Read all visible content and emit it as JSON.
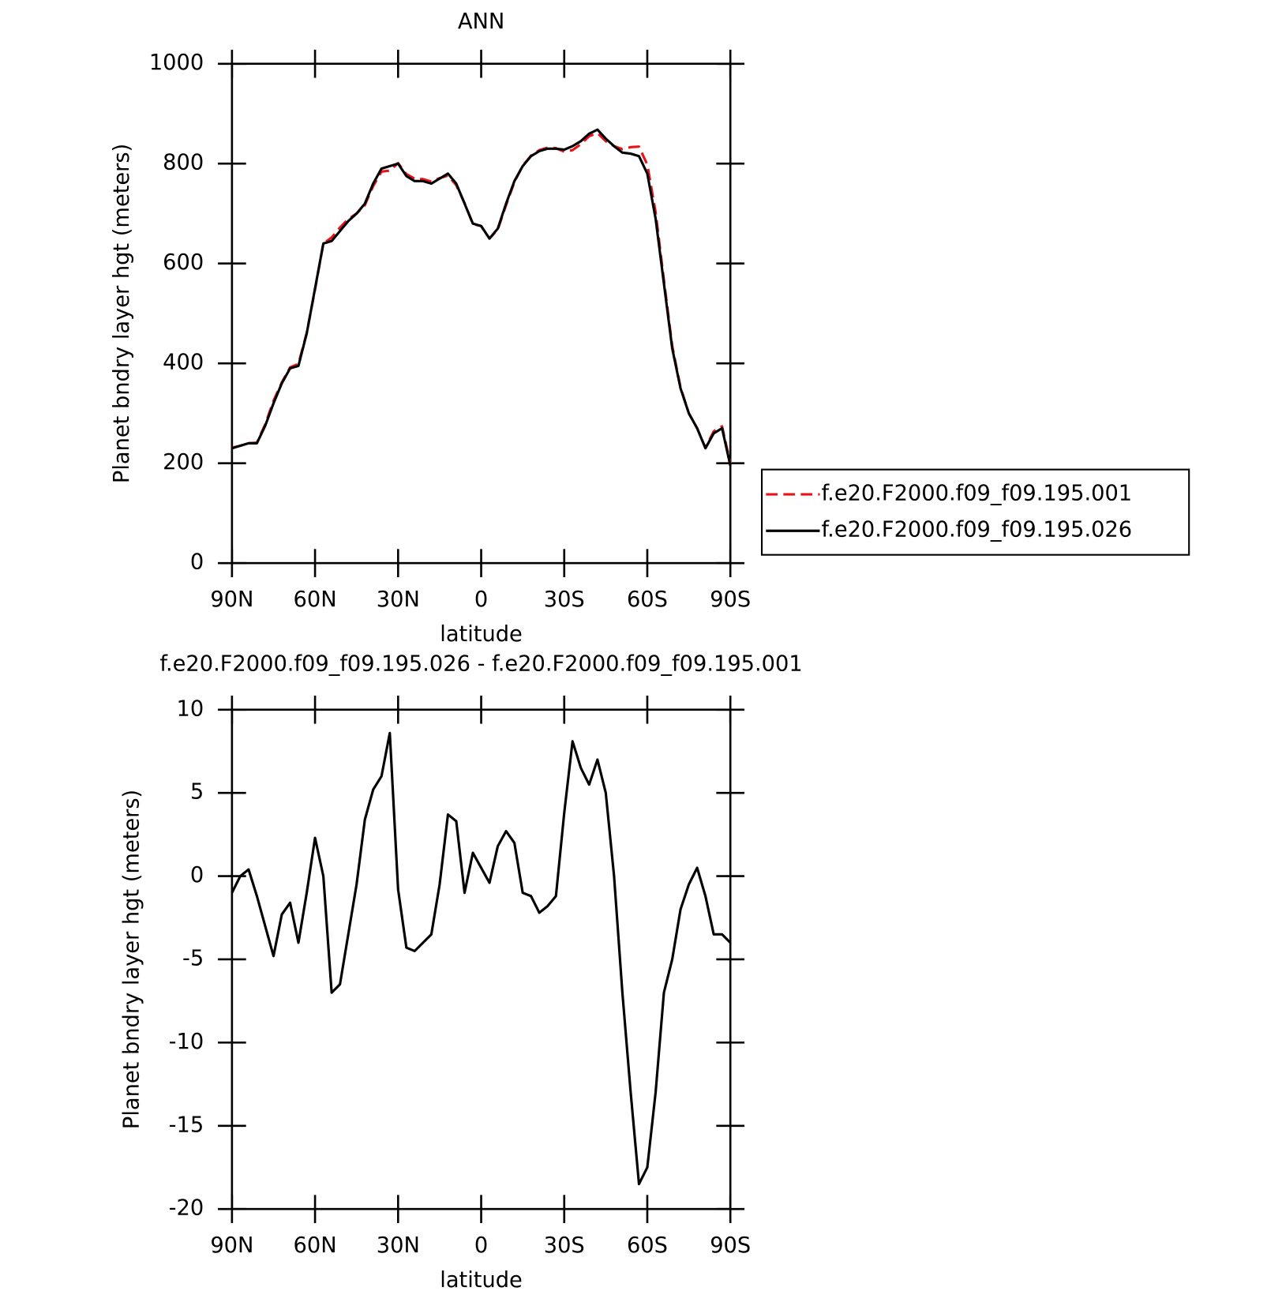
{
  "chart_data": [
    {
      "type": "line",
      "title": "ANN",
      "xlabel": "latitude",
      "ylabel": "Planet bndry layer hgt (meters)",
      "x": [
        90,
        87,
        84,
        81,
        78,
        75,
        72,
        69,
        66,
        63,
        60,
        57,
        54,
        51,
        48,
        45,
        42,
        39,
        36,
        33,
        30,
        27,
        24,
        21,
        18,
        15,
        12,
        9,
        6,
        3,
        0,
        -3,
        -6,
        -9,
        -12,
        -15,
        -18,
        -21,
        -24,
        -27,
        -30,
        -33,
        -36,
        -39,
        -42,
        -45,
        -48,
        -51,
        -54,
        -57,
        -60,
        -63,
        -66,
        -69,
        -72,
        -75,
        -78,
        -81,
        -84,
        -87,
        -90
      ],
      "series": [
        {
          "name": "f.e20.F2000.f09_f09.195.001",
          "color": "#e8141a",
          "dash": true,
          "values": [
            231,
            235,
            240,
            241,
            278,
            325,
            362,
            392,
            399,
            461,
            548,
            640,
            652,
            672,
            689,
            700,
            717,
            755,
            784,
            786,
            801,
            779,
            770,
            769,
            764,
            771,
            776,
            757,
            721,
            679,
            675,
            650,
            668,
            717,
            763,
            796,
            816,
            827,
            832,
            831,
            824,
            827,
            839,
            855,
            861,
            845,
            835,
            829,
            833,
            834,
            798,
            703,
            567,
            435,
            352,
            300,
            270,
            231,
            264,
            274,
            199
          ]
        },
        {
          "name": "f.e20.F2000.f09_f09.195.026",
          "color": "#000000",
          "dash": false,
          "values": [
            230,
            235,
            240,
            240,
            275,
            320,
            360,
            390,
            395,
            460,
            550,
            640,
            645,
            665,
            685,
            700,
            720,
            760,
            790,
            795,
            800,
            775,
            765,
            765,
            760,
            770,
            780,
            760,
            720,
            680,
            675,
            650,
            670,
            720,
            765,
            795,
            815,
            825,
            830,
            830,
            828,
            835,
            845,
            860,
            868,
            850,
            835,
            822,
            820,
            815,
            780,
            690,
            560,
            430,
            350,
            300,
            270,
            230,
            260,
            270,
            195
          ]
        }
      ],
      "xlim": [
        90,
        -90
      ],
      "xticks": [
        {
          "value": 90,
          "label": "90N"
        },
        {
          "value": 60,
          "label": "60N"
        },
        {
          "value": 30,
          "label": "30N"
        },
        0,
        {
          "value": -30,
          "label": "30S"
        },
        {
          "value": -60,
          "label": "60S"
        },
        {
          "value": -90,
          "label": "90S"
        }
      ],
      "ylim": [
        0,
        1000
      ],
      "yticks": [
        0,
        200,
        400,
        600,
        800,
        1000
      ],
      "legend": "right"
    },
    {
      "type": "line",
      "title": "f.e20.F2000.f09_f09.195.026 - f.e20.F2000.f09_f09.195.001",
      "xlabel": "latitude",
      "ylabel": "Planet bndry layer hgt (meters)",
      "x": [
        90,
        87,
        84,
        81,
        78,
        75,
        72,
        69,
        66,
        63,
        60,
        57,
        54,
        51,
        48,
        45,
        42,
        39,
        36,
        33,
        30,
        27,
        24,
        21,
        18,
        15,
        12,
        9,
        6,
        3,
        0,
        -3,
        -6,
        -9,
        -12,
        -15,
        -18,
        -21,
        -24,
        -27,
        -30,
        -33,
        -36,
        -39,
        -42,
        -45,
        -48,
        -51,
        -54,
        -57,
        -60,
        -63,
        -66,
        -69,
        -72,
        -75,
        -78,
        -81,
        -84,
        -87,
        -90
      ],
      "series": [
        {
          "color": "#000000",
          "dash": false,
          "values": [
            -1,
            0,
            0.4,
            -1.2,
            -3,
            -4.8,
            -2.3,
            -1.6,
            -4,
            -1,
            2.3,
            0,
            -7,
            -6.5,
            -3.5,
            -0.5,
            3.4,
            5.2,
            6,
            8.6,
            -0.8,
            -4.3,
            -4.5,
            -4,
            -3.5,
            -0.5,
            3.7,
            3.3,
            -1,
            1.4,
            0.5,
            -0.4,
            1.8,
            2.7,
            2,
            -1,
            -1.2,
            -2.2,
            -1.8,
            -1.2,
            3.8,
            8.1,
            6.5,
            5.5,
            7,
            5,
            0,
            -7,
            -13,
            -18.5,
            -17.5,
            -13,
            -7,
            -5,
            -2,
            -0.5,
            0.5,
            -1.2,
            -3.5,
            -3.5,
            -4
          ]
        }
      ],
      "xlim": [
        90,
        -90
      ],
      "xticks": [
        {
          "value": 90,
          "label": "90N"
        },
        {
          "value": 60,
          "label": "60N"
        },
        {
          "value": 30,
          "label": "30N"
        },
        0,
        {
          "value": -30,
          "label": "30S"
        },
        {
          "value": -60,
          "label": "60S"
        },
        {
          "value": -90,
          "label": "90S"
        }
      ],
      "ylim": [
        -20,
        10
      ],
      "yticks": [
        -20,
        -15,
        -10,
        -5,
        0,
        5,
        10
      ]
    }
  ]
}
